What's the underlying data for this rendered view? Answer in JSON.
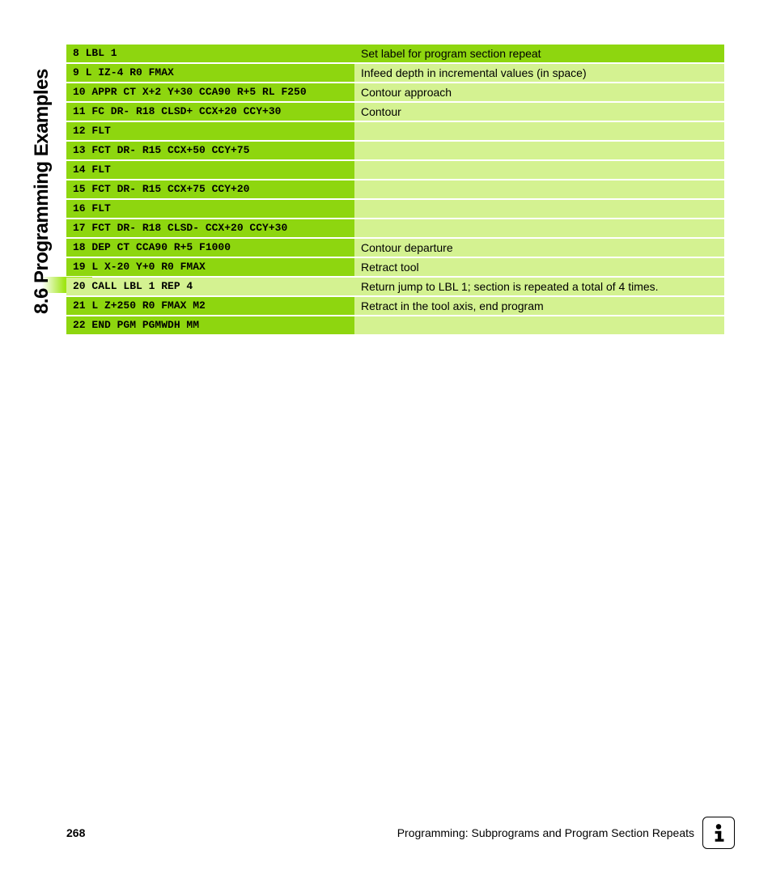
{
  "sideTitle": "8.6 Programming Examples",
  "colors": {
    "rowGreen": "#8ed60f",
    "rowLight": "#d4f291",
    "sideGradientEnd": "#9fe615"
  },
  "table": {
    "codeColWidthPx": 356,
    "rowHeightPx": 22,
    "rows": [
      {
        "code": "8 LBL 1",
        "desc": "Set label for program section repeat",
        "codeBg": "rowGreen",
        "descBg": "rowGreen"
      },
      {
        "code": "9 L IZ-4 R0 FMAX",
        "desc": "Infeed depth in incremental values (in space)",
        "codeBg": "rowGreen",
        "descBg": "rowLight"
      },
      {
        "code": "10 APPR CT X+2 Y+30 CCA90 R+5 RL F250",
        "desc": "Contour approach",
        "codeBg": "rowGreen",
        "descBg": "rowLight"
      },
      {
        "code": "11 FC DR- R18 CLSD+ CCX+20 CCY+30",
        "desc": "Contour",
        "codeBg": "rowGreen",
        "descBg": "rowLight"
      },
      {
        "code": "12 FLT",
        "desc": "",
        "codeBg": "rowGreen",
        "descBg": "rowLight"
      },
      {
        "code": "13 FCT DR- R15 CCX+50 CCY+75",
        "desc": "",
        "codeBg": "rowGreen",
        "descBg": "rowLight"
      },
      {
        "code": "14 FLT",
        "desc": "",
        "codeBg": "rowGreen",
        "descBg": "rowLight"
      },
      {
        "code": "15 FCT DR- R15 CCX+75 CCY+20",
        "desc": "",
        "codeBg": "rowGreen",
        "descBg": "rowLight"
      },
      {
        "code": "16 FLT",
        "desc": "",
        "codeBg": "rowGreen",
        "descBg": "rowLight"
      },
      {
        "code": "17 FCT DR- R18 CLSD- CCX+20 CCY+30",
        "desc": "",
        "codeBg": "rowGreen",
        "descBg": "rowLight"
      },
      {
        "code": "18 DEP CT CCA90 R+5 F1000",
        "desc": "Contour departure",
        "codeBg": "rowGreen",
        "descBg": "rowLight"
      },
      {
        "code": "19 L X-20 Y+0 R0 FMAX",
        "desc": "Retract tool",
        "codeBg": "rowGreen",
        "descBg": "rowLight"
      },
      {
        "code": "20 CALL LBL 1 REP 4",
        "desc": "Return jump to LBL 1; section is repeated a total of 4 times.",
        "codeBg": "rowLight",
        "descBg": "rowLight"
      },
      {
        "code": "21 L Z+250 R0 FMAX M2",
        "desc": "Retract in the tool axis, end program",
        "codeBg": "rowGreen",
        "descBg": "rowLight"
      },
      {
        "code": "22 END PGM PGMWDH MM",
        "desc": "",
        "codeBg": "rowGreen",
        "descBg": "rowLight"
      }
    ]
  },
  "footer": {
    "pageNumber": "268",
    "chapterText": "Programming: Subprograms and Program Section Repeats"
  }
}
